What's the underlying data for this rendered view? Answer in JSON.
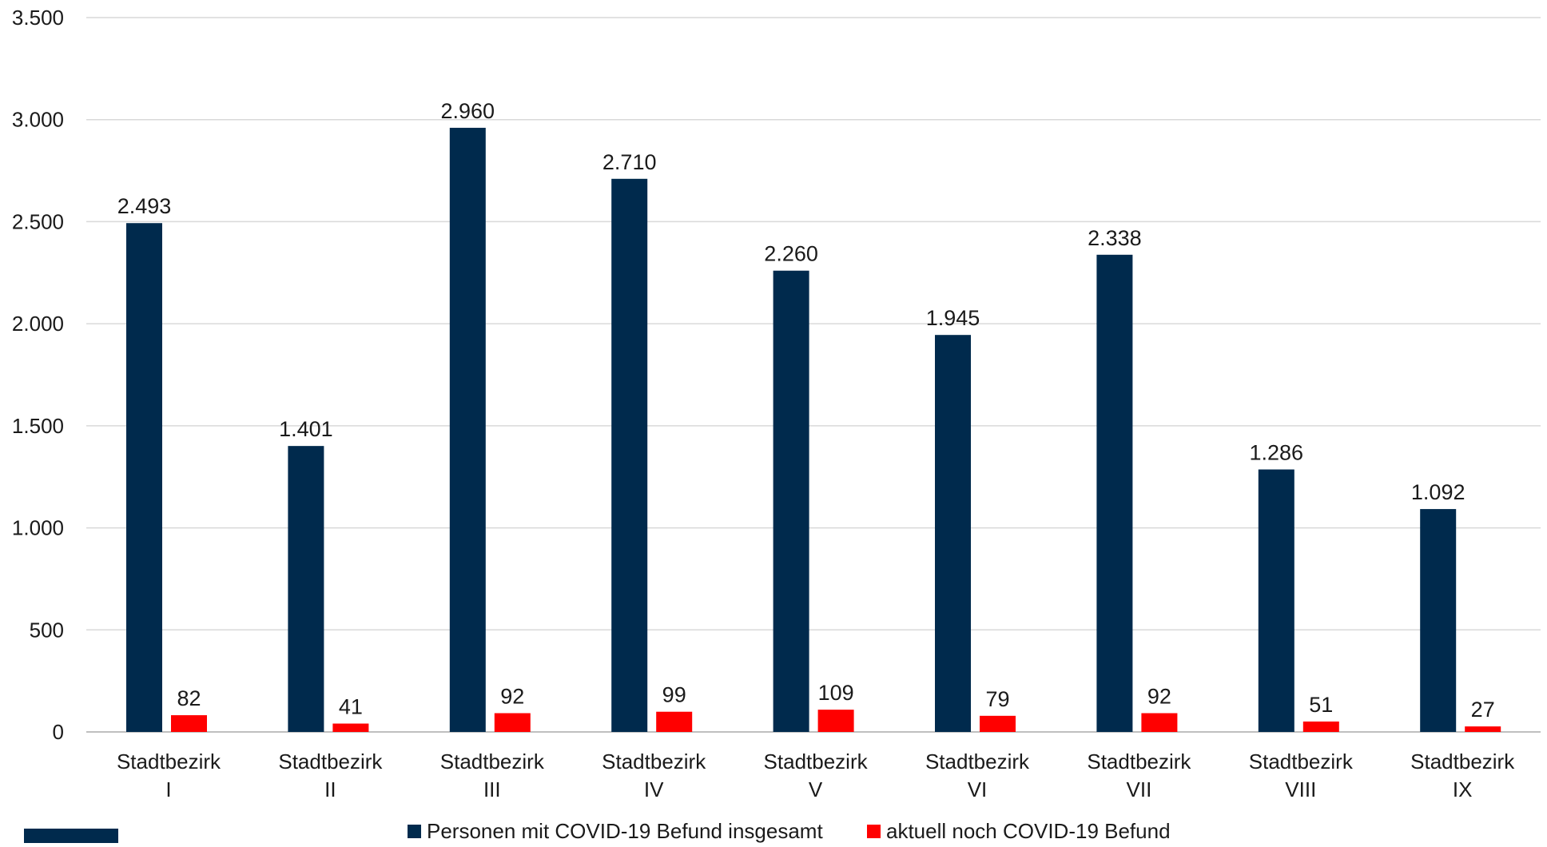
{
  "chart_data": {
    "type": "bar",
    "categories": [
      [
        "Stadtbezirk",
        "I"
      ],
      [
        "Stadtbezirk",
        "II"
      ],
      [
        "Stadtbezirk",
        "III"
      ],
      [
        "Stadtbezirk",
        "IV"
      ],
      [
        "Stadtbezirk",
        "V"
      ],
      [
        "Stadtbezirk",
        "VI"
      ],
      [
        "Stadtbezirk",
        "VII"
      ],
      [
        "Stadtbezirk",
        "VIII"
      ],
      [
        "Stadtbezirk",
        "IX"
      ]
    ],
    "series": [
      {
        "name": "Personen mit COVID-19 Befund insgesamt",
        "color": "#002a4d",
        "values": [
          2493,
          1401,
          2960,
          2710,
          2260,
          1945,
          2338,
          1286,
          1092
        ],
        "labels": [
          "2.493",
          "1.401",
          "2.960",
          "2.710",
          "2.260",
          "1.945",
          "2.338",
          "1.286",
          "1.092"
        ]
      },
      {
        "name": "aktuell noch COVID-19 Befund",
        "color": "#ff0000",
        "values": [
          82,
          41,
          92,
          99,
          109,
          79,
          92,
          51,
          27
        ],
        "labels": [
          "82",
          "41",
          "92",
          "99",
          "109",
          "79",
          "92",
          "51",
          "27"
        ]
      }
    ],
    "ylim": [
      0,
      3500
    ],
    "yticks": [
      {
        "value": 0,
        "label": "0"
      },
      {
        "value": 500,
        "label": "500"
      },
      {
        "value": 1000,
        "label": "1.000"
      },
      {
        "value": 1500,
        "label": "1.500"
      },
      {
        "value": 2000,
        "label": "2.000"
      },
      {
        "value": 2500,
        "label": "2.500"
      },
      {
        "value": 3000,
        "label": "3.000"
      },
      {
        "value": 3500,
        "label": "3.500"
      }
    ],
    "grid": true,
    "legend_position": "bottom",
    "title": "",
    "xlabel": "",
    "ylabel": ""
  },
  "colors": {
    "gridline": "#d9d9d9",
    "axis": "#bfbfbf",
    "corner_mark": "#002a4d"
  }
}
